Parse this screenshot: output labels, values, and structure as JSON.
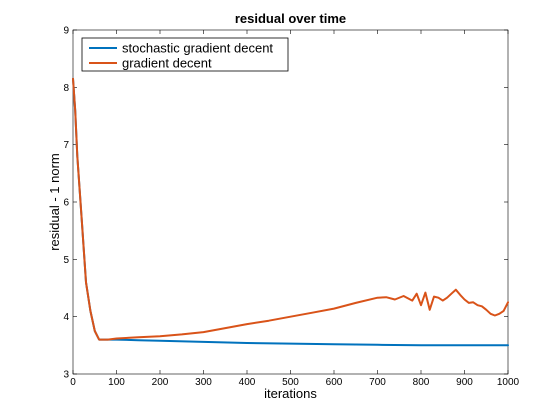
{
  "chart_data": {
    "type": "line",
    "title": "residual over time",
    "xlabel": "iterations",
    "ylabel": "residual - 1 norm",
    "xlim": [
      0,
      1000
    ],
    "ylim": [
      3,
      9
    ],
    "xticks": [
      "0",
      "100",
      "200",
      "300",
      "400",
      "500",
      "600",
      "700",
      "800",
      "900",
      "1000"
    ],
    "yticks": [
      "3",
      "4",
      "5",
      "6",
      "7",
      "8",
      "9"
    ],
    "grid": false,
    "legend_position": "top-left",
    "series": [
      {
        "name": "stochastic gradient decent",
        "color": "#0072BD",
        "x": [
          0,
          5,
          10,
          20,
          30,
          40,
          50,
          60,
          80,
          100,
          150,
          200,
          300,
          400,
          500,
          600,
          700,
          800,
          900,
          1000
        ],
        "y": [
          8.15,
          7.6,
          6.8,
          5.7,
          4.6,
          4.1,
          3.75,
          3.6,
          3.6,
          3.6,
          3.59,
          3.58,
          3.56,
          3.54,
          3.53,
          3.52,
          3.51,
          3.5,
          3.5,
          3.5
        ]
      },
      {
        "name": "gradient decent",
        "color": "#D95319",
        "x": [
          0,
          5,
          10,
          20,
          30,
          40,
          50,
          60,
          80,
          100,
          150,
          200,
          250,
          300,
          350,
          400,
          450,
          500,
          550,
          600,
          650,
          700,
          720,
          740,
          760,
          780,
          790,
          800,
          810,
          820,
          830,
          840,
          850,
          860,
          870,
          880,
          890,
          900,
          910,
          920,
          930,
          940,
          950,
          960,
          970,
          980,
          990,
          1000
        ],
        "y": [
          8.15,
          7.6,
          6.8,
          5.7,
          4.6,
          4.1,
          3.75,
          3.6,
          3.6,
          3.62,
          3.64,
          3.66,
          3.69,
          3.73,
          3.8,
          3.87,
          3.93,
          4.0,
          4.07,
          4.14,
          4.24,
          4.33,
          4.34,
          4.3,
          4.36,
          4.28,
          4.4,
          4.2,
          4.42,
          4.12,
          4.35,
          4.33,
          4.28,
          4.33,
          4.4,
          4.47,
          4.38,
          4.3,
          4.24,
          4.25,
          4.2,
          4.18,
          4.12,
          4.05,
          4.02,
          4.05,
          4.1,
          4.25
        ]
      }
    ]
  }
}
